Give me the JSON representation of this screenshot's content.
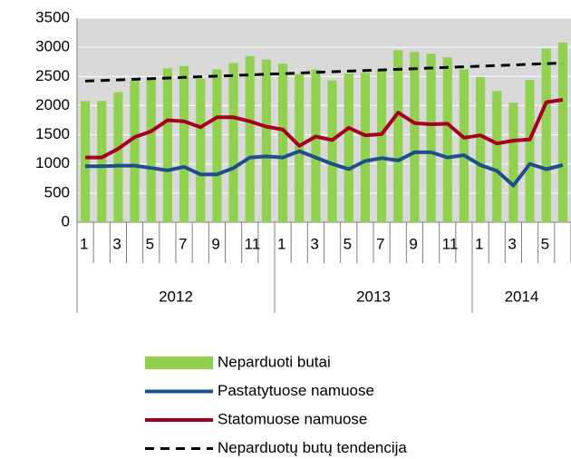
{
  "chart_data": {
    "type": "bar",
    "categories": [
      "1",
      null,
      "3",
      null,
      "5",
      null,
      "7",
      null,
      "9",
      null,
      "11",
      null,
      "1",
      null,
      "3",
      null,
      "5",
      null,
      "7",
      null,
      "9",
      null,
      "11",
      null,
      "1",
      null,
      "3",
      null,
      "5",
      null
    ],
    "year_groups": [
      {
        "label": "2012",
        "count": 12
      },
      {
        "label": "2013",
        "count": 12
      },
      {
        "label": "2014",
        "count": 6
      }
    ],
    "ylim": [
      0,
      3500
    ],
    "yticks": [
      0,
      500,
      1000,
      1500,
      2000,
      2500,
      3000,
      3500
    ],
    "grid": true,
    "series": [
      {
        "name": "Neparduoti butai",
        "type": "bar",
        "color": "#92d050",
        "values": [
          2080,
          2080,
          2230,
          2430,
          2480,
          2640,
          2680,
          2460,
          2620,
          2730,
          2850,
          2790,
          2720,
          2540,
          2620,
          2430,
          2550,
          2560,
          2620,
          2950,
          2920,
          2890,
          2830,
          2620,
          2490,
          2250,
          2050,
          2440,
          2980,
          3080
        ]
      },
      {
        "name": "Pastatytuose namuose",
        "type": "line",
        "color": "#1f4e8c",
        "values": [
          960,
          960,
          970,
          970,
          930,
          890,
          950,
          820,
          820,
          930,
          1110,
          1130,
          1110,
          1220,
          1110,
          1000,
          910,
          1050,
          1100,
          1060,
          1200,
          1200,
          1110,
          1150,
          980,
          880,
          630,
          1000,
          910,
          980
        ]
      },
      {
        "name": "Statomuose namuose",
        "type": "line",
        "color": "#a50021",
        "values": [
          1110,
          1110,
          1260,
          1460,
          1560,
          1750,
          1730,
          1630,
          1800,
          1800,
          1730,
          1640,
          1590,
          1310,
          1470,
          1410,
          1620,
          1490,
          1510,
          1880,
          1700,
          1680,
          1690,
          1450,
          1490,
          1350,
          1400,
          1420,
          2060,
          2100
        ]
      },
      {
        "name": "Neparduotų butų tendencija",
        "type": "line",
        "dashed": true,
        "color": "#000000",
        "values": [
          2420,
          2431,
          2441,
          2452,
          2463,
          2473,
          2484,
          2495,
          2506,
          2516,
          2527,
          2538,
          2548,
          2559,
          2570,
          2580,
          2591,
          2602,
          2612,
          2623,
          2634,
          2644,
          2655,
          2666,
          2677,
          2687,
          2698,
          2709,
          2719,
          2730
        ]
      }
    ]
  }
}
